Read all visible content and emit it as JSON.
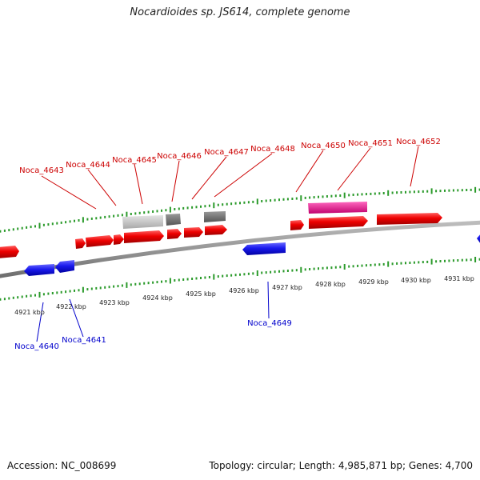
{
  "title": "Nocardioides sp. JS614, complete genome",
  "footer": {
    "accession": "Accession: NC_008699",
    "summary": "Topology: circular; Length: 4,985,871 bp; Genes: 4,700"
  },
  "scale_labels": [
    "4921 kbp",
    "4922 kbp",
    "4923 kbp",
    "4924 kbp",
    "4925 kbp",
    "4926 kbp",
    "4927 kbp",
    "4928 kbp",
    "4929 kbp",
    "4930 kbp",
    "4931 kbp"
  ],
  "forward_gene_labels": [
    "Noca_4643",
    "Noca_4644",
    "Noca_4645",
    "Noca_4646",
    "Noca_4647",
    "Noca_4648",
    "Noca_4650",
    "Noca_4651",
    "Noca_4652"
  ],
  "reverse_gene_labels": [
    "Noca_4640",
    "Noca_4641",
    "Noca_4649"
  ],
  "colors": {
    "forward_gene": "#ee0000",
    "reverse_gene": "#1a1aee",
    "pseudo_gene_light": "#c0c0c0",
    "pseudo_gene_dark": "#707070",
    "rna_gene": "#ee1493",
    "backbone": "#888888",
    "tick": "#2a9a2a",
    "forward_label": "#cc0000",
    "reverse_label": "#0000cc"
  }
}
